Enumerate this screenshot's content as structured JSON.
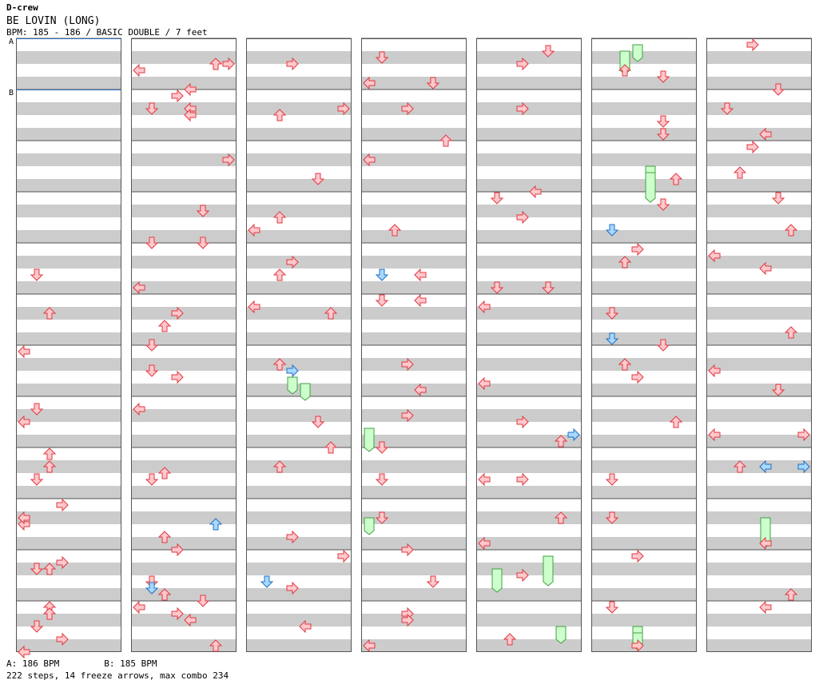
{
  "header": {
    "artist": "D-crew",
    "title": "BE LOVIN (LONG)",
    "bpm_line": "BPM: 185 - 186 / BASIC DOUBLE / 7 feet"
  },
  "markers": [
    "A",
    "B"
  ],
  "footer": {
    "bpm_a": "A: 186 BPM",
    "bpm_b": "B: 185 BPM",
    "stats": "222 steps, 14 freeze arrows, max combo 234"
  },
  "colors": {
    "step_fill": "#ffc8cc",
    "step_stroke": "#e03840",
    "shock_fill": "#a8d8ff",
    "shock_stroke": "#2070c0",
    "freeze_fill": "#ccffcc",
    "freeze_stroke": "#40a040",
    "band_gray": "#cccccc",
    "marker_line": "#3070c0"
  },
  "chart_data": {
    "type": "step-chart",
    "columns": 7,
    "measures_per_column": 12,
    "lanes_per_side": 4,
    "arrows_per_measure": 8,
    "notes": [
      [
        0,
        7,
        3,
        0
      ],
      [
        0,
        8,
        0,
        2
      ],
      [
        0,
        8,
        2,
        2
      ],
      [
        0,
        9,
        0,
        3
      ],
      [
        0,
        9,
        3,
        0
      ],
      [
        0,
        10,
        2,
        1
      ],
      [
        0,
        10,
        1,
        3
      ],
      [
        0,
        11,
        0,
        2
      ],
      [
        0,
        11,
        1,
        2
      ],
      [
        0,
        11,
        7,
        0
      ],
      [
        0,
        4,
        4,
        1
      ],
      [
        0,
        5,
        2,
        2
      ],
      [
        0,
        6,
        0,
        0
      ],
      [
        0,
        7,
        1,
        1
      ],
      [
        0,
        8,
        4,
        1
      ],
      [
        0,
        9,
        2,
        0
      ],
      [
        0,
        10,
        2,
        2
      ],
      [
        0,
        11,
        3,
        1
      ],
      [
        0,
        11,
        5,
        3
      ],
      [
        0,
        12,
        2,
        1
      ],
      [
        0,
        13,
        3,
        0
      ],
      [
        1,
        0,
        3,
        6
      ],
      [
        1,
        1,
        2,
        1
      ],
      [
        1,
        1,
        2,
        4
      ],
      [
        1,
        1,
        3,
        4
      ],
      [
        1,
        3,
        7,
        1
      ],
      [
        1,
        5,
        4,
        2
      ],
      [
        1,
        6,
        3,
        1
      ],
      [
        1,
        8,
        4,
        1
      ],
      [
        1,
        9,
        5,
        2
      ],
      [
        1,
        10,
        7,
        5
      ],
      [
        1,
        11,
        1,
        3
      ],
      [
        1,
        12,
        3,
        5
      ],
      [
        1,
        13,
        2,
        1
      ],
      [
        1,
        14,
        7,
        6
      ],
      [
        1,
        15,
        0,
        5
      ],
      [
        1,
        0,
        7,
        4
      ],
      [
        1,
        0,
        4,
        0
      ],
      [
        1,
        0,
        3,
        7
      ],
      [
        1,
        1,
        0,
        3
      ],
      [
        1,
        2,
        2,
        7
      ],
      [
        1,
        3,
        2,
        5
      ],
      [
        1,
        3,
        7,
        5
      ],
      [
        1,
        4,
        6,
        0
      ],
      [
        1,
        5,
        2,
        3
      ],
      [
        1,
        5,
        7,
        1
      ],
      [
        1,
        6,
        4,
        3
      ],
      [
        1,
        7,
        1,
        0
      ],
      [
        1,
        8,
        3,
        2
      ],
      [
        1,
        9,
        7,
        3
      ],
      [
        1,
        10,
        6,
        2
      ],
      [
        1,
        10,
        4,
        1
      ],
      [
        1,
        11,
        6,
        6
      ],
      [
        1,
        11,
        0,
        0
      ],
      [
        1,
        11,
        2,
        4
      ],
      [
        2,
        0,
        3,
        3
      ],
      [
        2,
        1,
        2,
        7
      ],
      [
        2,
        1,
        3,
        2
      ],
      [
        2,
        2,
        5,
        5
      ],
      [
        2,
        3,
        3,
        2
      ],
      [
        2,
        3,
        5,
        0
      ],
      [
        2,
        4,
        2,
        3
      ],
      [
        2,
        4,
        4,
        2
      ],
      [
        2,
        5,
        2,
        6
      ],
      [
        2,
        5,
        1,
        0
      ],
      [
        2,
        6,
        2,
        2
      ],
      [
        2,
        7,
        3,
        5
      ],
      [
        2,
        7,
        7,
        6
      ],
      [
        2,
        8,
        2,
        2
      ],
      [
        2,
        9,
        5,
        3
      ],
      [
        2,
        10,
        5,
        3
      ],
      [
        2,
        10,
        0,
        7
      ],
      [
        2,
        11,
        3,
        4
      ],
      [
        3,
        0,
        6,
        0
      ],
      [
        3,
        0,
        2,
        1
      ],
      [
        3,
        0,
        6,
        5
      ],
      [
        3,
        1,
        2,
        3
      ],
      [
        3,
        1,
        7,
        6
      ],
      [
        3,
        2,
        2,
        0
      ],
      [
        3,
        3,
        5,
        2
      ],
      [
        3,
        4,
        4,
        4
      ],
      [
        3,
        5,
        0,
        4
      ],
      [
        3,
        5,
        0,
        1
      ],
      [
        3,
        6,
        2,
        3
      ],
      [
        3,
        6,
        6,
        4
      ],
      [
        3,
        7,
        2,
        3
      ],
      [
        3,
        7,
        7,
        1
      ],
      [
        3,
        8,
        4,
        1
      ],
      [
        3,
        9,
        2,
        1
      ],
      [
        3,
        9,
        7,
        3
      ],
      [
        3,
        10,
        4,
        5
      ],
      [
        3,
        11,
        1,
        3
      ],
      [
        3,
        11,
        2,
        3
      ],
      [
        3,
        11,
        6,
        0
      ],
      [
        4,
        0,
        3,
        3
      ],
      [
        4,
        0,
        1,
        5
      ],
      [
        4,
        1,
        2,
        3
      ],
      [
        4,
        2,
        7,
        4
      ],
      [
        4,
        3,
        0,
        1
      ],
      [
        4,
        3,
        3,
        3
      ],
      [
        4,
        4,
        6,
        5
      ],
      [
        4,
        4,
        6,
        1
      ],
      [
        4,
        5,
        1,
        0
      ],
      [
        4,
        6,
        5,
        0
      ],
      [
        4,
        7,
        3,
        3
      ],
      [
        4,
        7,
        6,
        6
      ],
      [
        4,
        8,
        4,
        0
      ],
      [
        4,
        8,
        4,
        3
      ],
      [
        4,
        9,
        2,
        6
      ],
      [
        4,
        9,
        6,
        0
      ],
      [
        4,
        10,
        3,
        3
      ],
      [
        4,
        11,
        5,
        2
      ],
      [
        5,
        0,
        4,
        2
      ],
      [
        5,
        0,
        5,
        5
      ],
      [
        5,
        1,
        4,
        5
      ],
      [
        5,
        1,
        6,
        5
      ],
      [
        5,
        2,
        5,
        6
      ],
      [
        5,
        3,
        1,
        5
      ],
      [
        5,
        4,
        0,
        3
      ],
      [
        5,
        4,
        2,
        2
      ],
      [
        5,
        5,
        2,
        1
      ],
      [
        5,
        5,
        7,
        5
      ],
      [
        5,
        6,
        2,
        2
      ],
      [
        5,
        6,
        4,
        3
      ],
      [
        5,
        7,
        3,
        6
      ],
      [
        5,
        8,
        4,
        1
      ],
      [
        5,
        9,
        2,
        1
      ],
      [
        5,
        10,
        0,
        3
      ],
      [
        5,
        11,
        0,
        1
      ],
      [
        5,
        11,
        6,
        3
      ],
      [
        5,
        12,
        2,
        4
      ],
      [
        5,
        13,
        3,
        1
      ],
      [
        5,
        14,
        3,
        5
      ],
      [
        6,
        0,
        0,
        3
      ],
      [
        6,
        0,
        7,
        5
      ],
      [
        6,
        1,
        2,
        1
      ],
      [
        6,
        1,
        6,
        4
      ],
      [
        6,
        2,
        0,
        3
      ],
      [
        6,
        2,
        4,
        2
      ],
      [
        6,
        3,
        0,
        5
      ],
      [
        6,
        3,
        5,
        6
      ],
      [
        6,
        4,
        1,
        0
      ],
      [
        6,
        4,
        3,
        4
      ],
      [
        6,
        5,
        5,
        6
      ],
      [
        6,
        6,
        3,
        0
      ],
      [
        6,
        6,
        6,
        5
      ],
      [
        6,
        7,
        5,
        0
      ],
      [
        6,
        7,
        5,
        7
      ],
      [
        6,
        8,
        2,
        2
      ],
      [
        6,
        9,
        6,
        4
      ],
      [
        6,
        10,
        6,
        6
      ],
      [
        6,
        11,
        0,
        4
      ]
    ],
    "freezes": [
      [
        2,
        6,
        4,
        3,
        2
      ],
      [
        2,
        6,
        5,
        4,
        2
      ],
      [
        3,
        7,
        4,
        0,
        3
      ],
      [
        3,
        9,
        2,
        0,
        2
      ],
      [
        4,
        10,
        0,
        5,
        4
      ],
      [
        4,
        10,
        2,
        1,
        3
      ],
      [
        4,
        11,
        3,
        6,
        2
      ],
      [
        5,
        0,
        1,
        2,
        3
      ],
      [
        5,
        0,
        0,
        3,
        2
      ],
      [
        5,
        2,
        3,
        4,
        4
      ],
      [
        5,
        2,
        4,
        4,
        4
      ],
      [
        5,
        11,
        3,
        3,
        2
      ],
      [
        5,
        11,
        4,
        3,
        2
      ],
      [
        6,
        9,
        2,
        4,
        4
      ]
    ]
  }
}
